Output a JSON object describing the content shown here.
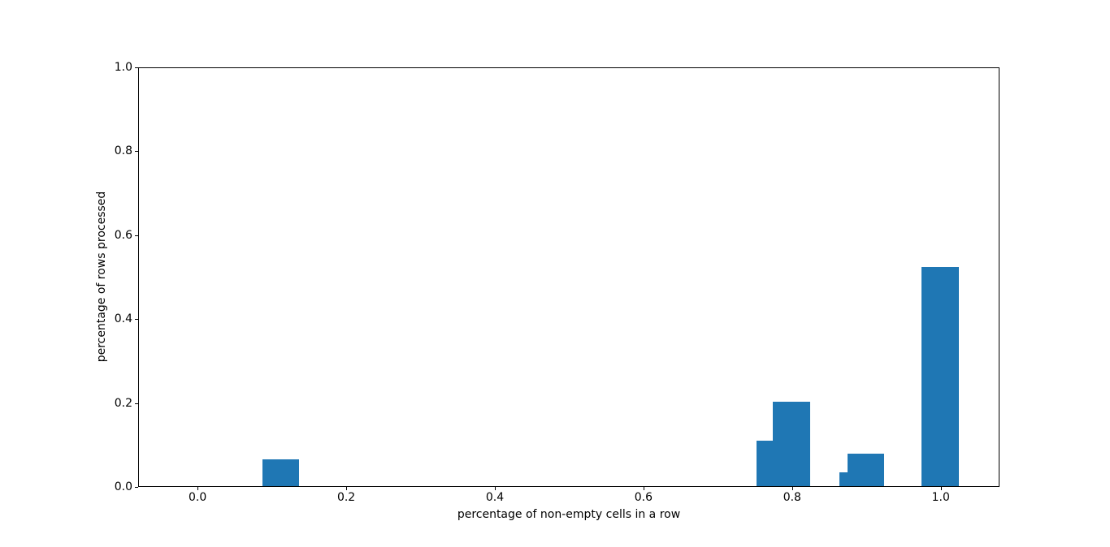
{
  "figure": {
    "background": "#ffffff"
  },
  "chart_data": {
    "type": "bar",
    "title": "",
    "xlabel": "percentage of non-empty cells in a row",
    "ylabel": "percentage of rows processed",
    "x": [
      0.111,
      0.778,
      0.8,
      0.889,
      0.9,
      1.0
    ],
    "values": [
      0.064,
      0.109,
      0.202,
      0.034,
      0.077,
      0.525
    ],
    "bar_width": 0.05,
    "bar_color": "#1f77b4",
    "xlim": [
      -0.08,
      1.079
    ],
    "ylim": [
      0,
      1
    ],
    "xticks": [
      "0.0",
      "0.2",
      "0.4",
      "0.6",
      "0.8",
      "1.0"
    ],
    "xtick_values": [
      0.0,
      0.2,
      0.4,
      0.6,
      0.8,
      1.0
    ],
    "yticks": [
      "0.0",
      "0.2",
      "0.4",
      "0.6",
      "0.8",
      "1.0"
    ],
    "ytick_values": [
      0.0,
      0.2,
      0.4,
      0.6,
      0.8,
      1.0
    ],
    "grid": false,
    "legend": "none"
  }
}
